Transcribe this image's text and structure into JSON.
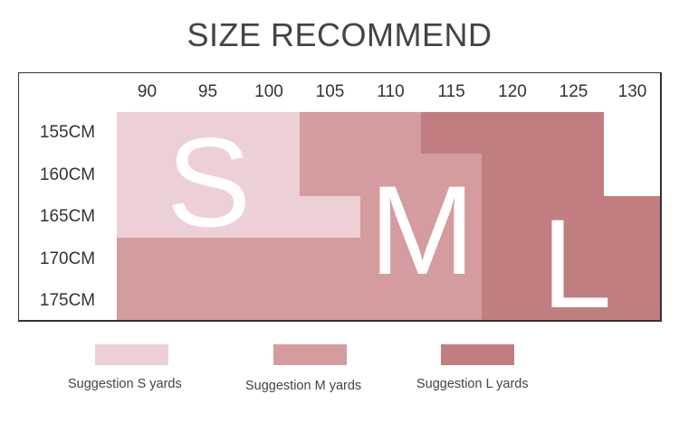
{
  "title": "SIZE RECOMMEND",
  "colors": {
    "S": "#edd0d5",
    "M": "#d49c9e",
    "L": "#c17e80",
    "empty": "#ffffff",
    "border": "#333333"
  },
  "columns": [
    "90",
    "95",
    "100",
    "105",
    "110",
    "115",
    "120",
    "125",
    "130"
  ],
  "rows": [
    {
      "label": "155CM",
      "sizes": [
        "S",
        "S",
        "S",
        "M",
        "M",
        "L",
        "L",
        "L",
        ""
      ]
    },
    {
      "label": "160CM",
      "sizes": [
        "S",
        "S",
        "S",
        "M",
        "M",
        "M",
        "L",
        "L",
        ""
      ]
    },
    {
      "label": "165CM",
      "sizes": [
        "S",
        "S",
        "S",
        "S",
        "M",
        "M",
        "L",
        "L",
        "L"
      ]
    },
    {
      "label": "170CM",
      "sizes": [
        "M",
        "M",
        "M",
        "M",
        "M",
        "M",
        "L",
        "L",
        "L"
      ]
    },
    {
      "label": "175CM",
      "sizes": [
        "M",
        "M",
        "M",
        "M",
        "M",
        "M",
        "L",
        "L",
        "L"
      ]
    }
  ],
  "overlay_letters": {
    "S": "S",
    "M": "M",
    "L": "L"
  },
  "legend": [
    {
      "size": "S",
      "label": "Suggestion S yards"
    },
    {
      "size": "M",
      "label": "Suggestion M yards"
    },
    {
      "size": "L",
      "label": "Suggestion L yards"
    }
  ]
}
